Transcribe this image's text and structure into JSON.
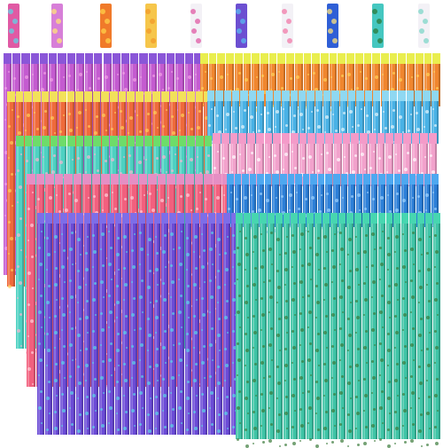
{
  "scene": {
    "subject": "bulk-assorted-decorative-pencils",
    "background_color": "#ffffff"
  },
  "swatches": [
    {
      "color": "#e05aa4",
      "accent": "#5fd3e6"
    },
    {
      "color": "#d77fd8",
      "accent": "#ffe27a"
    },
    {
      "color": "#f07a2a",
      "accent": "#ffd24a"
    },
    {
      "color": "#f6c64b",
      "accent": "#f29a2a"
    },
    {
      "color": "#f3f1f6",
      "accent": "#e05aa4"
    },
    {
      "color": "#6c4fd1",
      "accent": "#5ab8f0"
    },
    {
      "color": "#f3f1f6",
      "accent": "#f27aa8"
    },
    {
      "color": "#2f5fd6",
      "accent": "#ffe27a"
    },
    {
      "color": "#45c7c0",
      "accent": "#2b7a3a"
    },
    {
      "color": "#f3f1f6",
      "accent": "#7fd6c8"
    }
  ],
  "bundles": [
    {
      "name": "purple-pink",
      "body": "#c45bd0",
      "ferrule": "#8a56d8",
      "pattern": "#f2a3e6",
      "count": 22
    },
    {
      "name": "orange-yellow",
      "body": "#f0862e",
      "ferrule": "#e9ee4e",
      "pattern": "#ffd35a",
      "count": 28
    },
    {
      "name": "orange-red",
      "body": "#ef6a3b",
      "ferrule": "#f2e15a",
      "pattern": "#ffd05a",
      "count": 24
    },
    {
      "name": "light-blue",
      "body": "#49b2e6",
      "ferrule": "#8fd8f2",
      "pattern": "#e9f6fb",
      "count": 28
    },
    {
      "name": "mint-teal",
      "body": "#4ed1c2",
      "ferrule": "#6edc6a",
      "pattern": "#f7b6d0",
      "count": 24
    },
    {
      "name": "pink",
      "body": "#f2a2cc",
      "ferrule": "#f49bc9",
      "pattern": "#ffffff",
      "count": 26
    },
    {
      "name": "coral-pink",
      "body": "#f2607e",
      "ferrule": "#e58fc4",
      "pattern": "#ffd2dc",
      "count": 22
    },
    {
      "name": "blue",
      "body": "#2c7fd8",
      "ferrule": "#4ea8f0",
      "pattern": "#9fd4ff",
      "count": 28
    },
    {
      "name": "violet-galaxy",
      "body": "#6b4bd6",
      "ferrule": "#7d6ee8",
      "pattern": "#5ad6e8",
      "count": 26
    },
    {
      "name": "green-avocado",
      "body": "#3fc4a6",
      "ferrule": "#47d6b0",
      "pattern": "#3a7a3a",
      "count": 26
    }
  ]
}
